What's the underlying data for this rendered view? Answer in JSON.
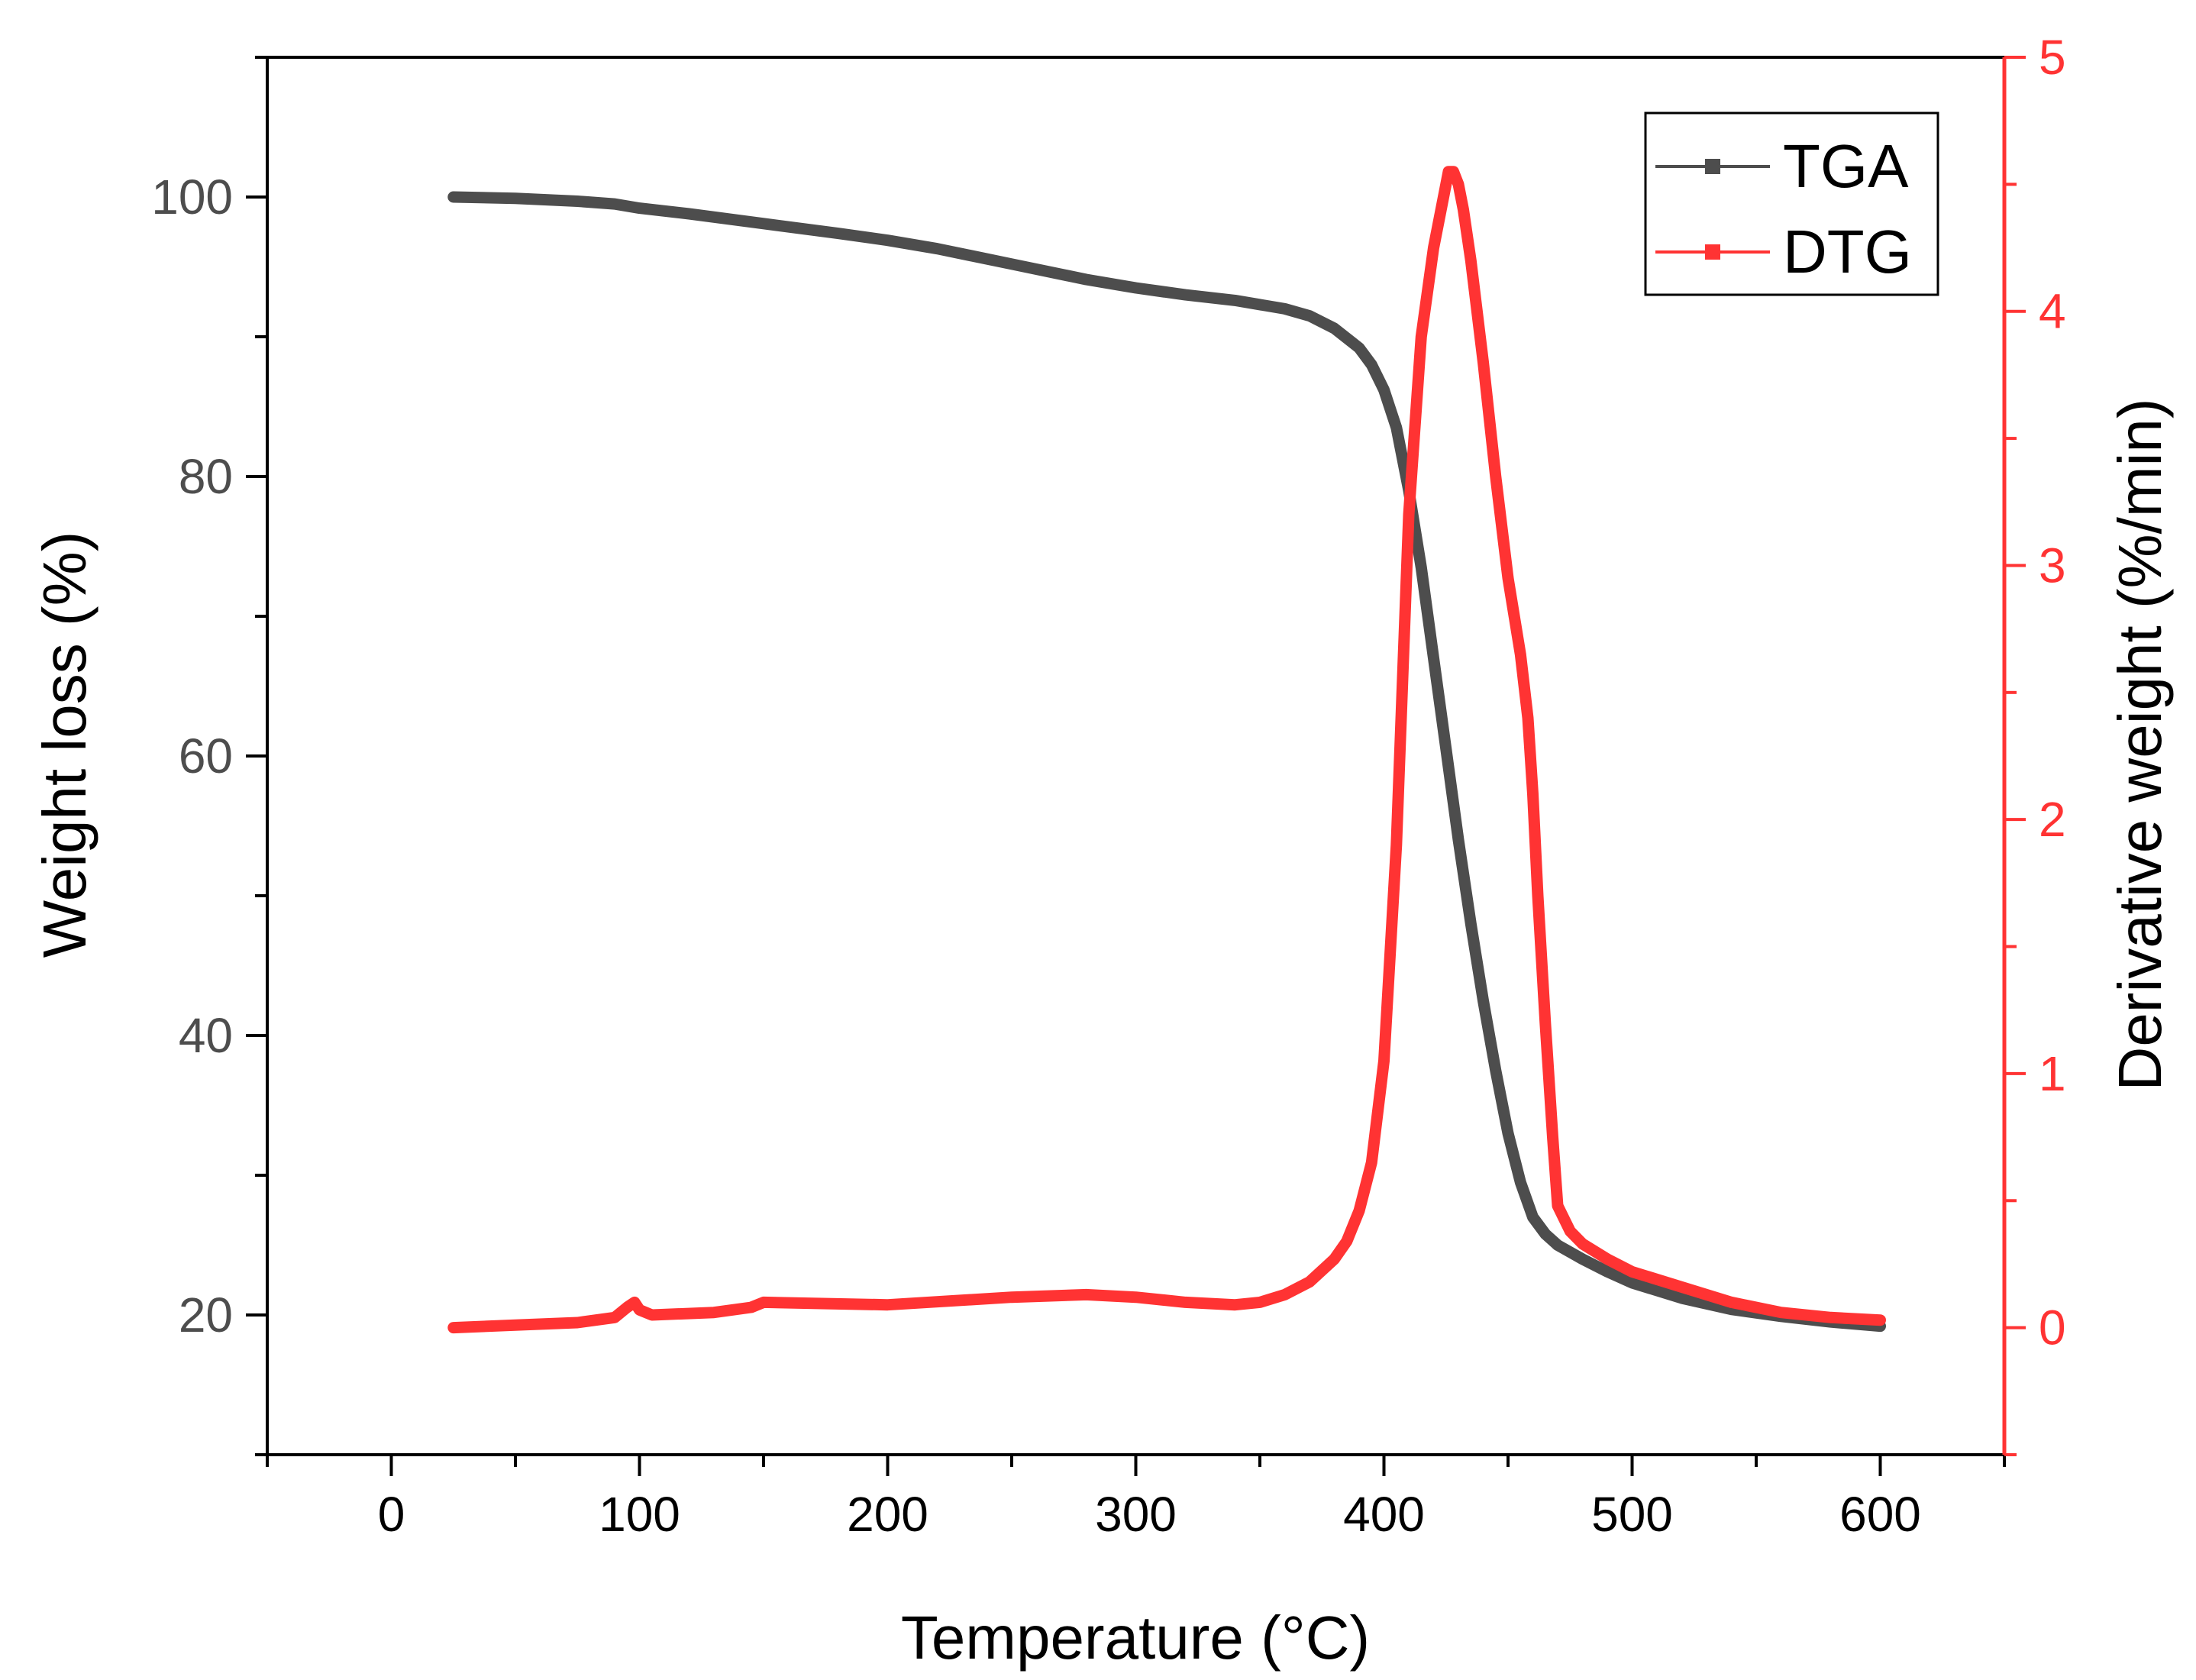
{
  "chart_data": {
    "type": "line",
    "xlabel": "Temperature (°C)",
    "ylabel_left": "Weight loss (%)",
    "ylabel_right": "Derivative weight (%/min)",
    "xlim": [
      -50,
      650
    ],
    "ylim_left": [
      10,
      110
    ],
    "ylim_right": [
      -0.5,
      5
    ],
    "x_ticks": [
      0,
      100,
      200,
      300,
      400,
      500,
      600
    ],
    "x_tick_labels": [
      "0",
      "100",
      "200",
      "300",
      "400",
      "500",
      "600"
    ],
    "y_left_ticks": [
      20,
      40,
      60,
      80,
      100
    ],
    "y_left_tick_labels": [
      "20",
      "40",
      "60",
      "80",
      "100"
    ],
    "y_right_ticks": [
      0,
      1,
      2,
      3,
      4,
      5
    ],
    "y_right_tick_labels": [
      "0",
      "1",
      "2",
      "3",
      "4",
      "5"
    ],
    "legend_position": "top-right",
    "grid": false,
    "series": [
      {
        "name": "TGA",
        "axis": "left",
        "color": "#4d4d4d",
        "x": [
          25,
          50,
          75,
          90,
          100,
          120,
          150,
          180,
          200,
          220,
          250,
          280,
          300,
          320,
          340,
          360,
          370,
          380,
          390,
          395,
          400,
          405,
          410,
          415,
          420,
          425,
          430,
          435,
          440,
          445,
          450,
          455,
          460,
          465,
          470,
          480,
          490,
          500,
          520,
          540,
          560,
          580,
          600
        ],
        "values": [
          100,
          99.9,
          99.7,
          99.5,
          99.2,
          98.8,
          98.1,
          97.4,
          96.9,
          96.3,
          95.2,
          94.1,
          93.5,
          93.0,
          92.6,
          92.0,
          91.5,
          90.6,
          89.2,
          88.0,
          86.2,
          83.5,
          79.0,
          73.5,
          67.0,
          60.5,
          54.0,
          48.0,
          42.5,
          37.5,
          33.0,
          29.5,
          27.0,
          25.8,
          25.0,
          24.0,
          23.1,
          22.3,
          21.2,
          20.4,
          19.9,
          19.5,
          19.2
        ]
      },
      {
        "name": "DTG",
        "axis": "right",
        "color": "#ff3333",
        "x": [
          25,
          50,
          75,
          90,
          95,
          98,
          100,
          105,
          130,
          145,
          150,
          200,
          250,
          280,
          300,
          320,
          340,
          350,
          360,
          370,
          380,
          385,
          390,
          395,
          400,
          405,
          410,
          415,
          420,
          424,
          426,
          428,
          430,
          432,
          435,
          440,
          445,
          450,
          455,
          458,
          460,
          462,
          465,
          468,
          470,
          475,
          480,
          490,
          500,
          520,
          540,
          560,
          580,
          600
        ],
        "values": [
          0.0,
          0.01,
          0.02,
          0.04,
          0.08,
          0.1,
          0.07,
          0.05,
          0.06,
          0.08,
          0.1,
          0.09,
          0.12,
          0.13,
          0.12,
          0.1,
          0.09,
          0.1,
          0.13,
          0.18,
          0.27,
          0.34,
          0.46,
          0.65,
          1.05,
          1.9,
          3.2,
          3.9,
          4.25,
          4.45,
          4.55,
          4.55,
          4.5,
          4.4,
          4.2,
          3.8,
          3.35,
          2.95,
          2.65,
          2.4,
          2.1,
          1.7,
          1.2,
          0.75,
          0.48,
          0.38,
          0.33,
          0.27,
          0.22,
          0.16,
          0.1,
          0.06,
          0.04,
          0.03
        ]
      }
    ]
  }
}
